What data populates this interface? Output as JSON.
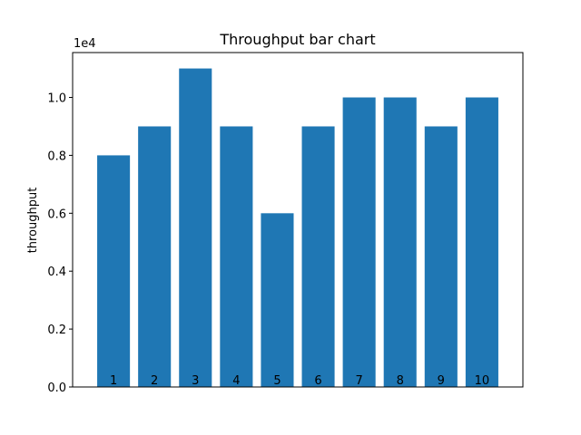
{
  "chart_data": {
    "type": "bar",
    "title": "Throughput bar chart",
    "xlabel": "",
    "ylabel": "throughput",
    "y_offset_text": "1e4",
    "categories": [
      "1",
      "2",
      "3",
      "4",
      "5",
      "6",
      "7",
      "8",
      "9",
      "10"
    ],
    "values": [
      8000,
      9000,
      11000,
      9000,
      6000,
      9000,
      10000,
      10000,
      9000,
      10000
    ],
    "ylim": [
      0,
      11550
    ],
    "yticks": [
      0,
      2000,
      4000,
      6000,
      8000,
      10000
    ],
    "ytick_labels": [
      "0.0",
      "0.2",
      "0.4",
      "0.6",
      "0.8",
      "1.0"
    ],
    "grid": false,
    "bar_color": "#1f77b4",
    "category_labels_position": "inside-bottom"
  }
}
